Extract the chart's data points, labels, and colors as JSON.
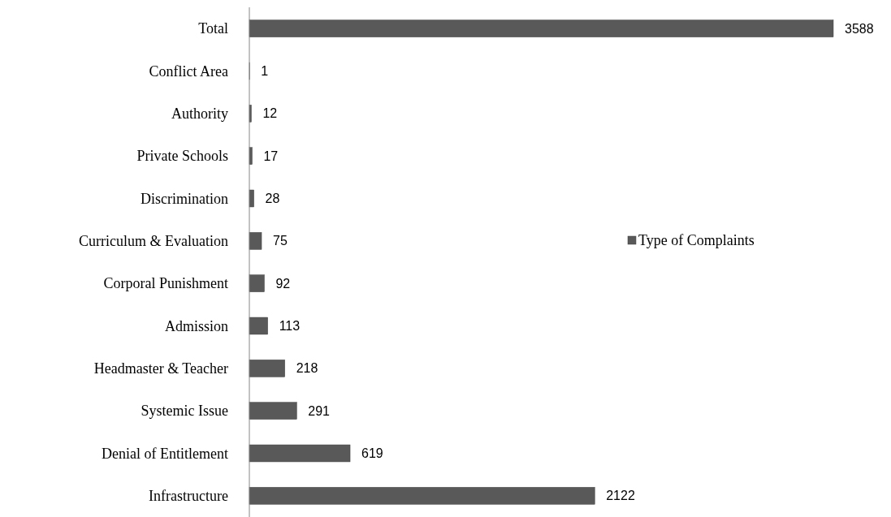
{
  "chart_data": {
    "type": "bar",
    "orientation": "horizontal",
    "categories": [
      "Total",
      "Conflict Area",
      "Authority",
      "Private Schools",
      "Discrimination",
      "Curriculum & Evaluation",
      "Corporal Punishment",
      "Admission",
      "Headmaster & Teacher",
      "Systemic Issue",
      "Denial of Entitlement",
      "Infrastructure"
    ],
    "series": [
      {
        "name": "Type of Complaints",
        "color": "#595959",
        "values": [
          3588,
          1,
          12,
          17,
          28,
          75,
          92,
          113,
          218,
          291,
          619,
          2122
        ]
      }
    ],
    "data_labels": true,
    "legend": "right"
  }
}
